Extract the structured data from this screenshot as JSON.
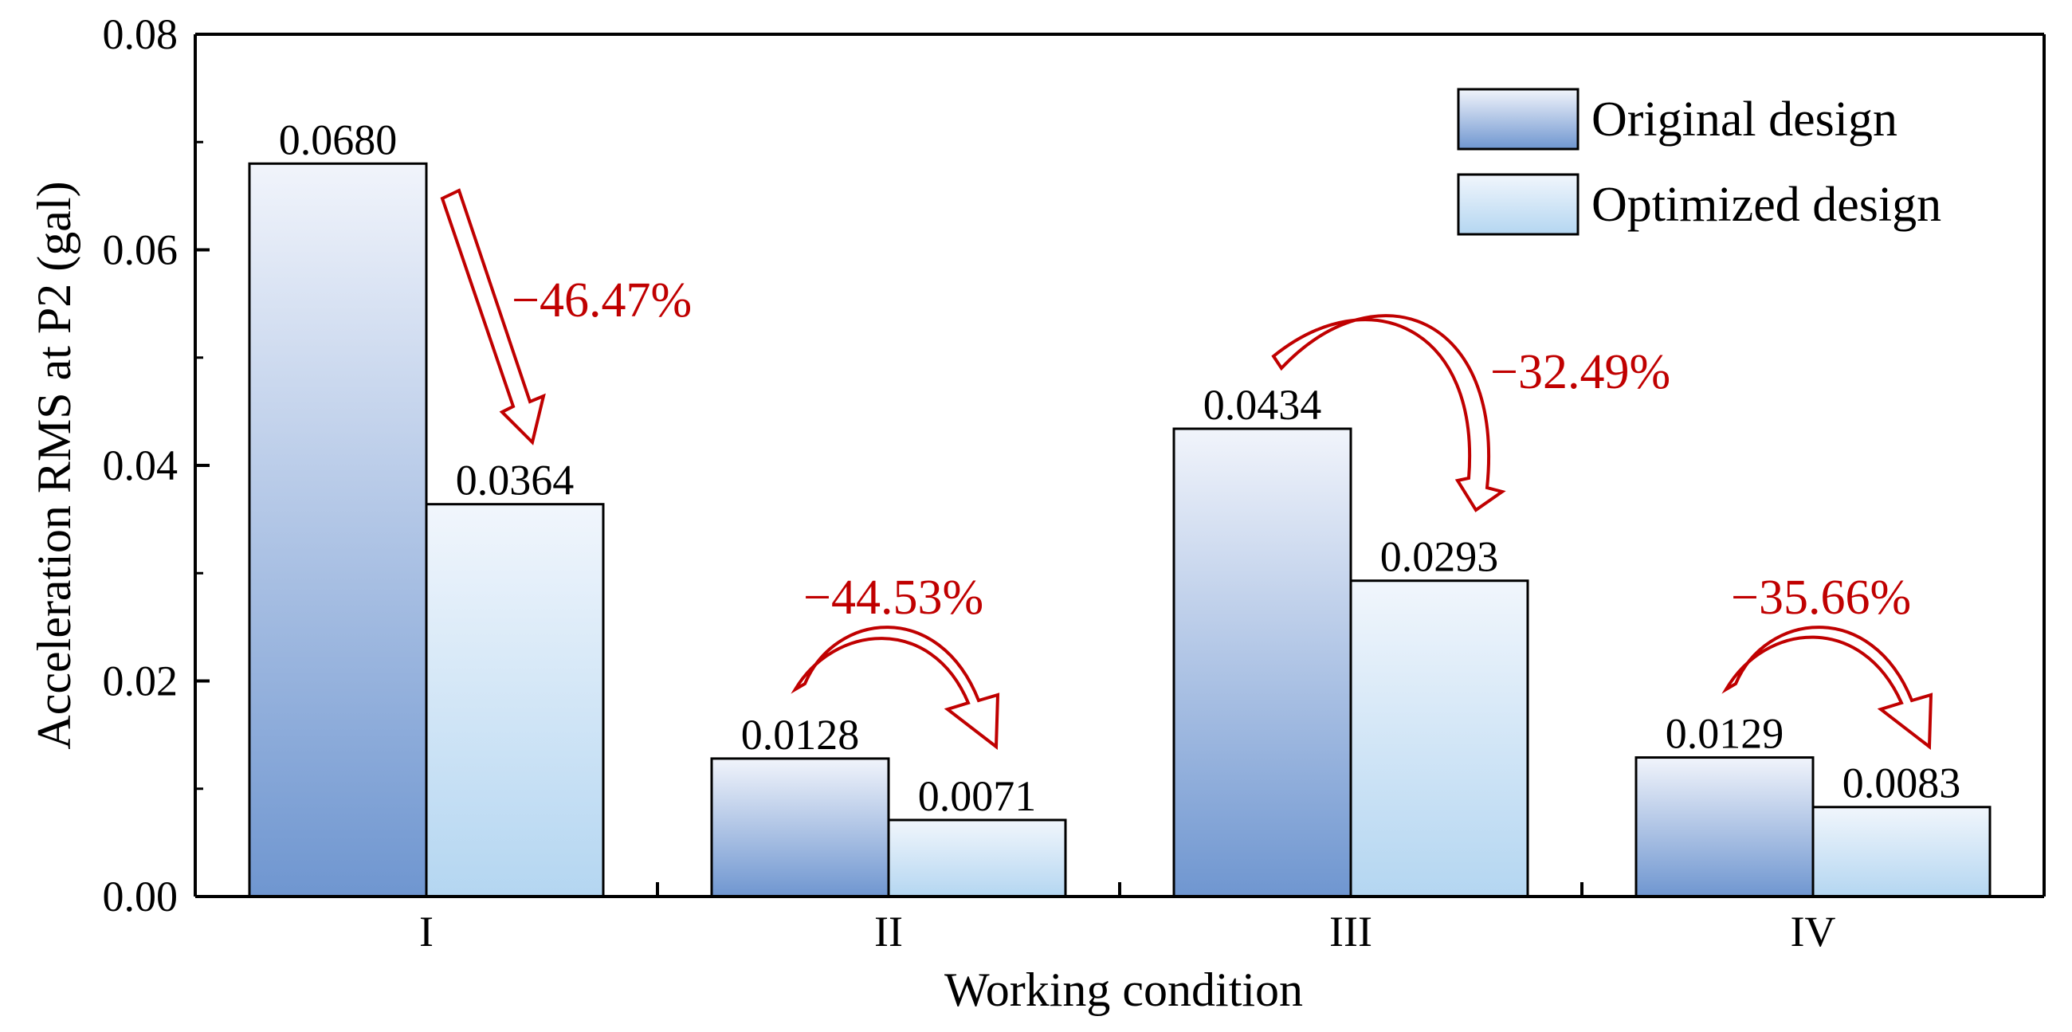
{
  "chart_data": {
    "type": "bar",
    "title": "",
    "xlabel": "Working condition",
    "ylabel": "Acceleration RMS at P2 (gal)",
    "categories": [
      "I",
      "II",
      "III",
      "IV"
    ],
    "ylim": [
      0,
      0.08
    ],
    "yticks": [
      "0.00",
      "0.02",
      "0.04",
      "0.06",
      "0.08"
    ],
    "grid": false,
    "legend_position": "top-right",
    "series": [
      {
        "name": "Original design",
        "values": [
          0.068,
          0.0128,
          0.0434,
          0.0129
        ],
        "labels": [
          "0.0680",
          "0.0128",
          "0.0434",
          "0.0129"
        ]
      },
      {
        "name": "Optimized design",
        "values": [
          0.0364,
          0.0071,
          0.0293,
          0.0083
        ],
        "labels": [
          "0.0364",
          "0.0071",
          "0.0293",
          "0.0083"
        ]
      }
    ],
    "annotations": [
      "−46.47%",
      "−44.53%",
      "−32.49%",
      "−35.66%"
    ],
    "colors": {
      "original_dark": "#6f96d0",
      "original_light": "#f1f4fb",
      "optimized_dark": "#b4d6f1",
      "optimized_light": "#f1f6fc",
      "annotation": "#c00000",
      "axis": "#000000"
    }
  }
}
